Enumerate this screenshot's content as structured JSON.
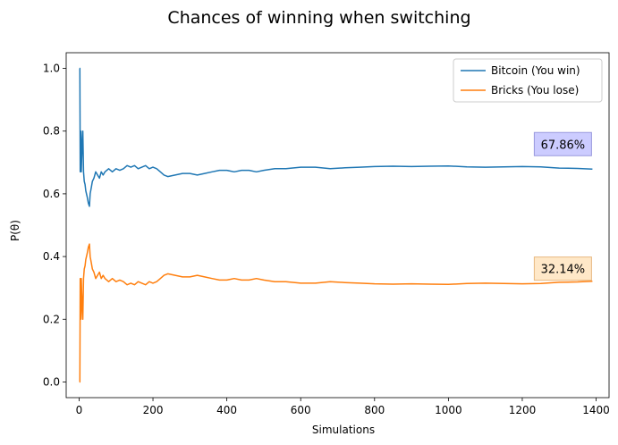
{
  "chart_data": {
    "type": "line",
    "title": "Chances of winning when switching",
    "xlabel": "Simulations",
    "ylabel": "P(θ)",
    "xlim": [
      -35,
      1435
    ],
    "ylim": [
      -0.05,
      1.05
    ],
    "xticks": [
      0,
      200,
      400,
      600,
      800,
      1000,
      1200,
      1400
    ],
    "yticks": [
      0.0,
      0.2,
      0.4,
      0.6,
      0.8,
      1.0
    ],
    "xtick_labels": [
      "0",
      "200",
      "400",
      "600",
      "800",
      "1000",
      "1200",
      "1400"
    ],
    "ytick_labels": [
      "0.0",
      "0.2",
      "0.4",
      "0.6",
      "0.8",
      "1.0"
    ],
    "grid": false,
    "legend_position": "top-right",
    "series": [
      {
        "name": "Bitcoin (You win)",
        "color": "#1f77b4",
        "x": [
          1,
          2,
          3,
          4,
          5,
          6,
          7,
          8,
          9,
          10,
          12,
          14,
          16,
          18,
          20,
          22,
          25,
          28,
          30,
          33,
          36,
          40,
          45,
          50,
          55,
          60,
          65,
          70,
          80,
          90,
          100,
          110,
          120,
          130,
          140,
          150,
          160,
          170,
          180,
          190,
          200,
          210,
          220,
          230,
          240,
          260,
          280,
          300,
          320,
          340,
          360,
          380,
          400,
          420,
          440,
          460,
          480,
          500,
          530,
          560,
          600,
          640,
          680,
          720,
          760,
          800,
          850,
          900,
          950,
          1000,
          1050,
          1100,
          1150,
          1200,
          1250,
          1300,
          1350,
          1390
        ],
        "y": [
          1.0,
          1.0,
          0.67,
          0.75,
          0.8,
          0.67,
          0.71,
          0.75,
          0.78,
          0.8,
          0.67,
          0.64,
          0.63,
          0.61,
          0.6,
          0.59,
          0.57,
          0.56,
          0.6,
          0.62,
          0.64,
          0.65,
          0.67,
          0.66,
          0.65,
          0.67,
          0.66,
          0.67,
          0.68,
          0.67,
          0.68,
          0.675,
          0.68,
          0.69,
          0.685,
          0.69,
          0.68,
          0.685,
          0.69,
          0.68,
          0.685,
          0.68,
          0.67,
          0.66,
          0.655,
          0.66,
          0.665,
          0.665,
          0.66,
          0.665,
          0.67,
          0.675,
          0.675,
          0.67,
          0.675,
          0.675,
          0.67,
          0.675,
          0.68,
          0.68,
          0.685,
          0.685,
          0.68,
          0.683,
          0.685,
          0.687,
          0.688,
          0.687,
          0.688,
          0.689,
          0.686,
          0.685,
          0.686,
          0.687,
          0.686,
          0.682,
          0.681,
          0.679
        ]
      },
      {
        "name": "Bricks (You lose)",
        "color": "#ff7f0e",
        "x": [
          1,
          2,
          3,
          4,
          5,
          6,
          7,
          8,
          9,
          10,
          12,
          14,
          16,
          18,
          20,
          22,
          25,
          28,
          30,
          33,
          36,
          40,
          45,
          50,
          55,
          60,
          65,
          70,
          80,
          90,
          100,
          110,
          120,
          130,
          140,
          150,
          160,
          170,
          180,
          190,
          200,
          210,
          220,
          230,
          240,
          260,
          280,
          300,
          320,
          340,
          360,
          380,
          400,
          420,
          440,
          460,
          480,
          500,
          530,
          560,
          600,
          640,
          680,
          720,
          760,
          800,
          850,
          900,
          950,
          1000,
          1050,
          1100,
          1150,
          1200,
          1250,
          1300,
          1350,
          1390
        ],
        "y": [
          0.0,
          0.0,
          0.33,
          0.25,
          0.2,
          0.33,
          0.29,
          0.25,
          0.22,
          0.2,
          0.33,
          0.36,
          0.37,
          0.39,
          0.4,
          0.41,
          0.43,
          0.44,
          0.4,
          0.38,
          0.36,
          0.35,
          0.33,
          0.34,
          0.35,
          0.33,
          0.34,
          0.33,
          0.32,
          0.33,
          0.32,
          0.325,
          0.32,
          0.31,
          0.315,
          0.31,
          0.32,
          0.315,
          0.31,
          0.32,
          0.315,
          0.32,
          0.33,
          0.34,
          0.345,
          0.34,
          0.335,
          0.335,
          0.34,
          0.335,
          0.33,
          0.325,
          0.325,
          0.33,
          0.325,
          0.325,
          0.33,
          0.325,
          0.32,
          0.32,
          0.315,
          0.315,
          0.32,
          0.317,
          0.315,
          0.313,
          0.312,
          0.313,
          0.312,
          0.311,
          0.314,
          0.315,
          0.314,
          0.313,
          0.314,
          0.318,
          0.319,
          0.321
        ]
      }
    ],
    "annotations": [
      {
        "text": "67.86%",
        "x": 1310,
        "y": 0.7586,
        "facecolor": "#ccccff",
        "edgecolor": "#9999dd"
      },
      {
        "text": "32.14%",
        "x": 1310,
        "y": 0.3614,
        "facecolor": "#ffe8c8",
        "edgecolor": "#e8b880"
      }
    ]
  }
}
